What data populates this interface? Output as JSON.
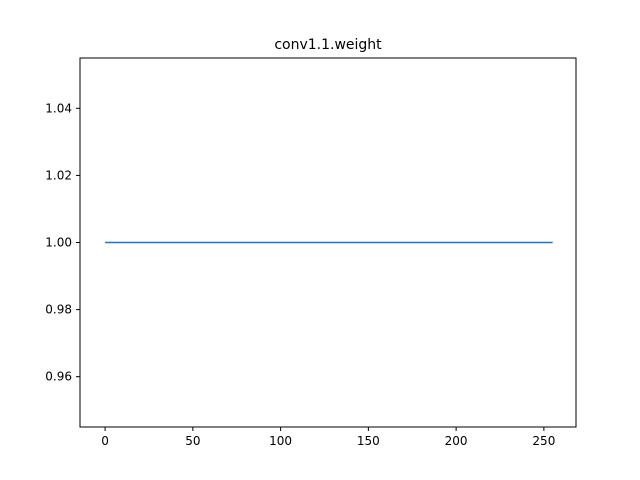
{
  "chart_data": {
    "type": "line",
    "title": "conv1.1.weight",
    "xlabel": "",
    "ylabel": "",
    "xlim": [
      -14.3,
      268.3
    ],
    "ylim": [
      0.945,
      1.055
    ],
    "grid": false,
    "x_ticks": [
      0,
      50,
      100,
      150,
      200,
      250
    ],
    "x_tick_labels": [
      "0",
      "50",
      "100",
      "150",
      "200",
      "250"
    ],
    "y_ticks": [
      0.96,
      0.98,
      1.0,
      1.02,
      1.04
    ],
    "y_tick_labels": [
      "0.96",
      "0.98",
      "1.00",
      "1.02",
      "1.04"
    ],
    "series": [
      {
        "color": "#1f77b4",
        "x": [
          0,
          255
        ],
        "y": [
          1.0,
          1.0
        ]
      }
    ]
  }
}
